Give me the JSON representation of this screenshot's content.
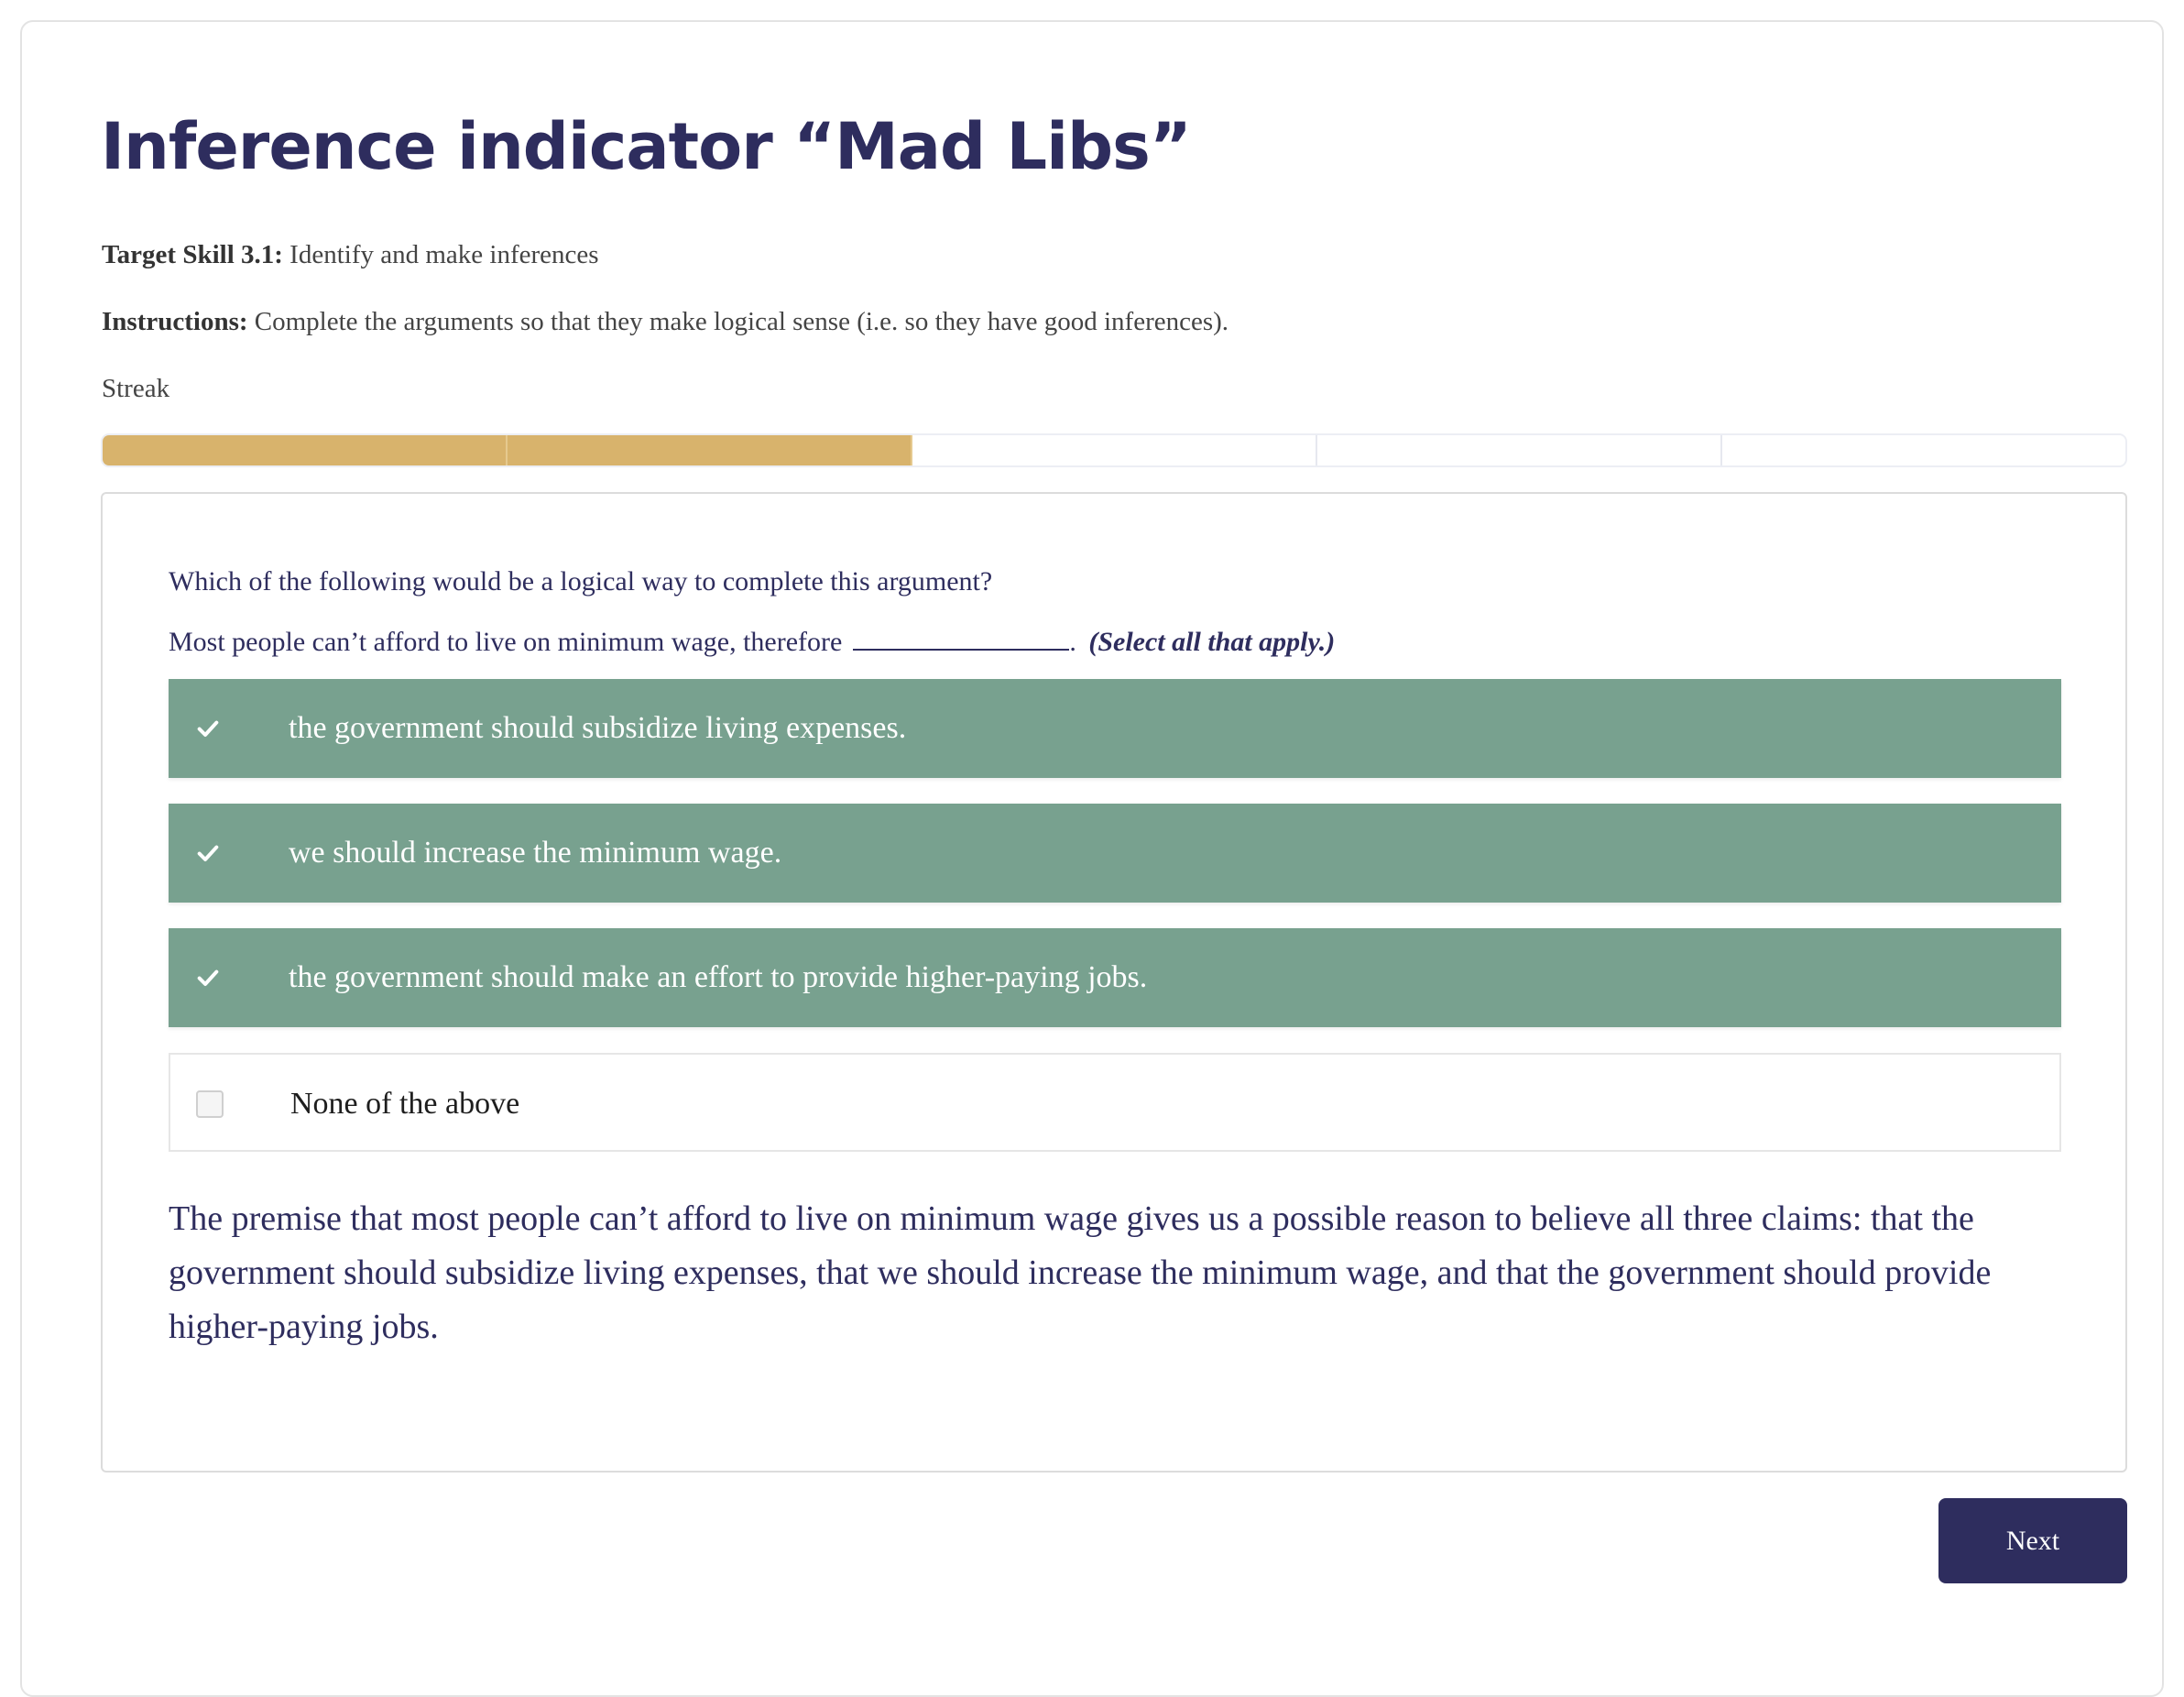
{
  "header": {
    "title": "Inference indicator “Mad Libs”"
  },
  "meta": {
    "skill_label": "Target Skill 3.1:",
    "skill_text": "Identify and make inferences",
    "instructions_label": "Instructions:",
    "instructions_text": "Complete the arguments so that they make logical sense (i.e. so they have good inferences).",
    "streak_label": "Streak"
  },
  "streak": {
    "filled": 2,
    "total": 5
  },
  "question": {
    "prompt": "Which of the following would be a logical way to complete this argument?",
    "argument_text": "Most people can’t afford to live on minimum wage, therefore",
    "argument_end": ".",
    "select_hint": "(Select all that apply.)",
    "options": [
      {
        "label": "the government should subsidize living expenses.",
        "selected": true
      },
      {
        "label": "we should increase the minimum wage.",
        "selected": true
      },
      {
        "label": "the government should make an effort to provide higher-paying jobs.",
        "selected": true
      },
      {
        "label": "None of the above",
        "selected": false
      }
    ],
    "explanation": "The premise that most people can’t afford to live on minimum wage gives us a possible reason to believe all three claims: that the government should subsidize living expenses, that we should increase the minimum wage, and that the government should provide higher-paying jobs."
  },
  "actions": {
    "next_label": "Next"
  },
  "colors": {
    "primary": "#2e2d5e",
    "streak_fill": "#d8b36c",
    "selected_option": "#78a18f"
  },
  "icons": {
    "selected": "check-icon",
    "unselected": "checkbox-empty-icon"
  }
}
